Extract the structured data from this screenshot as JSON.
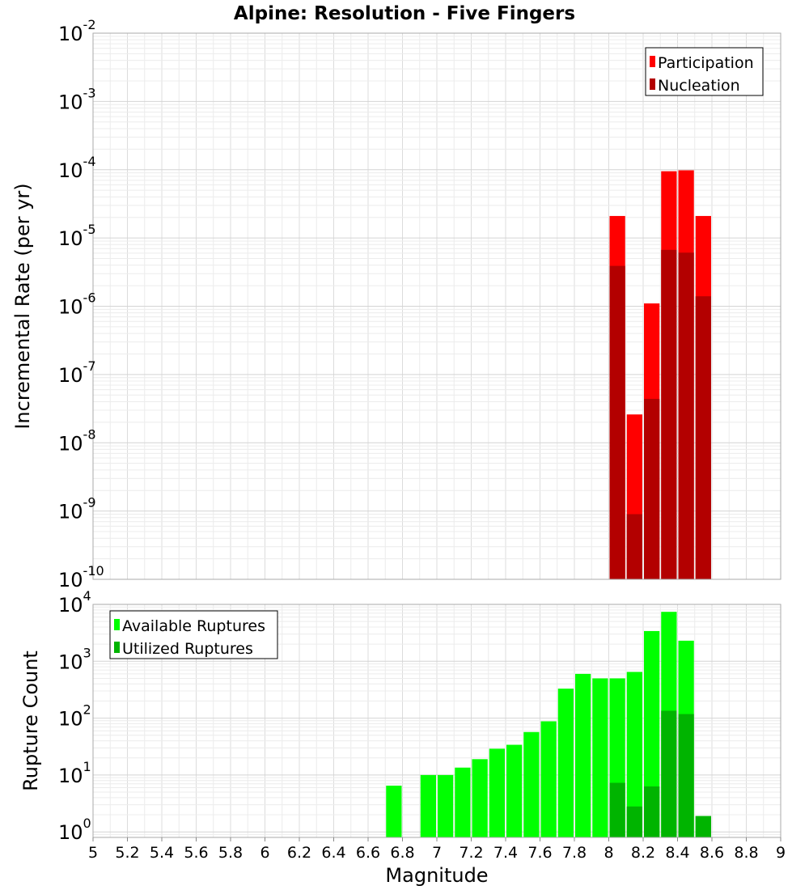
{
  "chart_data": [
    {
      "type": "bar",
      "title": "Alpine: Resolution - Five Fingers",
      "xlabel": "",
      "ylabel": "Incremental Rate (per yr)",
      "y_scale": "log",
      "xlim": [
        5,
        9
      ],
      "ylim": [
        1e-10,
        0.01
      ],
      "y_ticks": [
        {
          "base": "10",
          "exp": "-10"
        },
        {
          "base": "10",
          "exp": "-9"
        },
        {
          "base": "10",
          "exp": "-8"
        },
        {
          "base": "10",
          "exp": "-7"
        },
        {
          "base": "10",
          "exp": "-6"
        },
        {
          "base": "10",
          "exp": "-5"
        },
        {
          "base": "10",
          "exp": "-4"
        },
        {
          "base": "10",
          "exp": "-3"
        },
        {
          "base": "10",
          "exp": "-2"
        }
      ],
      "grid": true,
      "legend_position": "top-right",
      "bar_width": 0.1,
      "series": [
        {
          "name": "Participation",
          "color": "#ff0000",
          "points": [
            {
              "x": 8.05,
              "y": 2.1e-05
            },
            {
              "x": 8.15,
              "y": 2.6e-08
            },
            {
              "x": 8.25,
              "y": 1.1e-06
            },
            {
              "x": 8.35,
              "y": 9.5e-05
            },
            {
              "x": 8.45,
              "y": 9.8e-05
            },
            {
              "x": 8.55,
              "y": 2.1e-05
            }
          ]
        },
        {
          "name": "Nucleation",
          "color": "#b30000",
          "points": [
            {
              "x": 8.05,
              "y": 3.9e-06
            },
            {
              "x": 8.15,
              "y": 9e-10
            },
            {
              "x": 8.25,
              "y": 4.4e-08
            },
            {
              "x": 8.35,
              "y": 6.7e-06
            },
            {
              "x": 8.45,
              "y": 6.1e-06
            },
            {
              "x": 8.55,
              "y": 1.4e-06
            }
          ]
        }
      ]
    },
    {
      "type": "bar",
      "title": "",
      "xlabel": "Magnitude",
      "ylabel": "Rupture Count",
      "y_scale": "log",
      "xlim": [
        5,
        9
      ],
      "ylim": [
        0.8,
        10000.0
      ],
      "y_ticks": [
        {
          "value": 1,
          "base": "10",
          "exp": "0"
        },
        {
          "value": 10,
          "base": "10",
          "exp": "1"
        },
        {
          "value": 100,
          "base": "10",
          "exp": "2"
        },
        {
          "value": 1000,
          "base": "10",
          "exp": "3"
        },
        {
          "value": 10000,
          "base": "10",
          "exp": "4"
        }
      ],
      "x_ticks": [
        "5",
        "5.2",
        "5.4",
        "5.6",
        "5.8",
        "6",
        "6.2",
        "6.4",
        "6.6",
        "6.8",
        "7",
        "7.2",
        "7.4",
        "7.6",
        "7.8",
        "8",
        "8.2",
        "8.4",
        "8.6",
        "8.8",
        "9"
      ],
      "grid": true,
      "legend_position": "top-left",
      "bar_width": 0.1,
      "series": [
        {
          "name": "Available Ruptures",
          "color": "#00ff00",
          "points": [
            {
              "x": 6.75,
              "y": 6.5
            },
            {
              "x": 6.95,
              "y": 10
            },
            {
              "x": 7.05,
              "y": 10
            },
            {
              "x": 7.15,
              "y": 13.5
            },
            {
              "x": 7.25,
              "y": 19
            },
            {
              "x": 7.35,
              "y": 29
            },
            {
              "x": 7.45,
              "y": 34
            },
            {
              "x": 7.55,
              "y": 57
            },
            {
              "x": 7.65,
              "y": 88
            },
            {
              "x": 7.75,
              "y": 330
            },
            {
              "x": 7.85,
              "y": 600
            },
            {
              "x": 7.95,
              "y": 500
            },
            {
              "x": 8.05,
              "y": 500
            },
            {
              "x": 8.15,
              "y": 650
            },
            {
              "x": 8.25,
              "y": 3400
            },
            {
              "x": 8.35,
              "y": 7400
            },
            {
              "x": 8.45,
              "y": 2300
            },
            {
              "x": 8.55,
              "y": 1.9
            }
          ]
        },
        {
          "name": "Utilized Ruptures",
          "color": "#00b400",
          "points": [
            {
              "x": 8.05,
              "y": 7.3
            },
            {
              "x": 8.15,
              "y": 2.8
            },
            {
              "x": 8.25,
              "y": 6.3
            },
            {
              "x": 8.35,
              "y": 135
            },
            {
              "x": 8.45,
              "y": 118
            },
            {
              "x": 8.55,
              "y": 1.9
            }
          ]
        }
      ]
    }
  ]
}
